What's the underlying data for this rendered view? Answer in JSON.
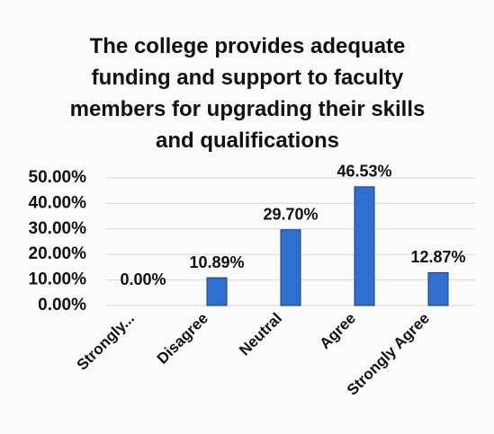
{
  "chart_data": {
    "type": "bar",
    "title": "The college provides adequate funding and support to faculty members for upgrading their skills and qualifications",
    "categories": [
      "Strongly...",
      "Disagree",
      "Neutral",
      "Agree",
      "Strongly Agree"
    ],
    "values": [
      0,
      10.89,
      29.7,
      46.53,
      12.87
    ],
    "value_labels": [
      "0.00%",
      "10.89%",
      "29.70%",
      "46.53%",
      "12.87%"
    ],
    "color": "#2f6fd0",
    "ylim": [
      0,
      50
    ],
    "yticks": [
      {
        "value": 0,
        "label": "0.00%"
      },
      {
        "value": 10,
        "label": "10.00%"
      },
      {
        "value": 20,
        "label": "20.00%"
      },
      {
        "value": 30,
        "label": "30.00%"
      },
      {
        "value": 40,
        "label": "40.00%"
      },
      {
        "value": 50,
        "label": "50.00%"
      }
    ],
    "grid": true
  }
}
